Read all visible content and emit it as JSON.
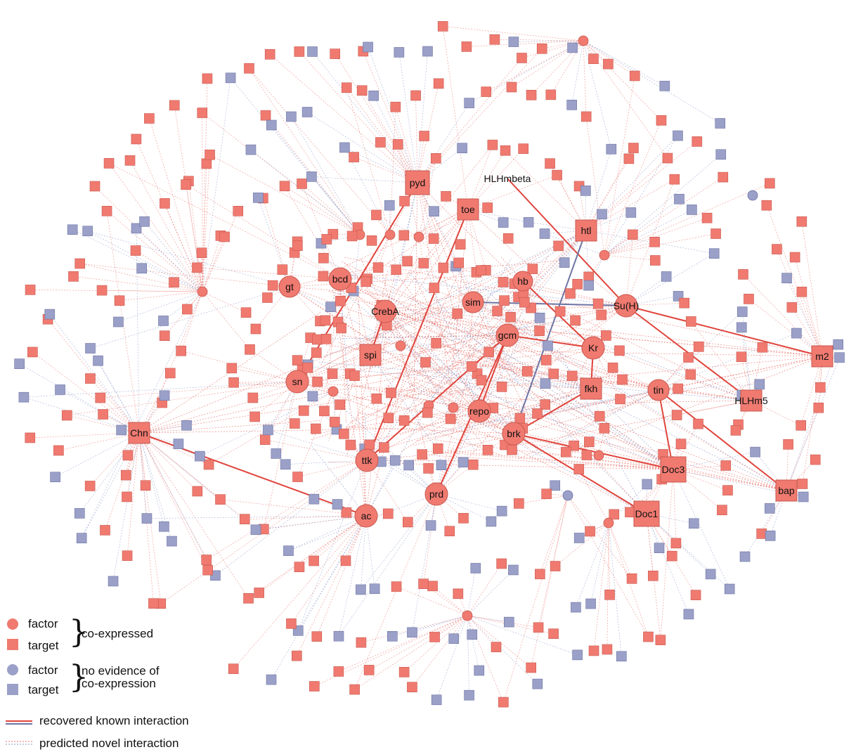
{
  "nodes": {
    "labeled": [
      {
        "id": "pyd",
        "label": "pyd",
        "kind": "target"
      },
      {
        "id": "HLHmbeta",
        "label": "HLHmbeta",
        "kind": "text"
      },
      {
        "id": "toe",
        "label": "toe",
        "kind": "target"
      },
      {
        "id": "htl",
        "label": "htl",
        "kind": "target"
      },
      {
        "id": "bcd",
        "label": "bcd",
        "kind": "factor"
      },
      {
        "id": "gt",
        "label": "gt",
        "kind": "factor"
      },
      {
        "id": "hb",
        "label": "hb",
        "kind": "factor"
      },
      {
        "id": "sim",
        "label": "sim",
        "kind": "factor"
      },
      {
        "id": "CrebA",
        "label": "CrebA",
        "kind": "factor"
      },
      {
        "id": "SuH",
        "label": "Su(H)",
        "kind": "factor"
      },
      {
        "id": "gcm",
        "label": "gcm",
        "kind": "factor"
      },
      {
        "id": "spi",
        "label": "spi",
        "kind": "target"
      },
      {
        "id": "Kr",
        "label": "Kr",
        "kind": "factor"
      },
      {
        "id": "m2",
        "label": "m2",
        "kind": "target"
      },
      {
        "id": "sn",
        "label": "sn",
        "kind": "factor"
      },
      {
        "id": "fkh",
        "label": "fkh",
        "kind": "target"
      },
      {
        "id": "tin",
        "label": "tin",
        "kind": "factor"
      },
      {
        "id": "HLHm5",
        "label": "HLHm5",
        "kind": "target"
      },
      {
        "id": "repo",
        "label": "repo",
        "kind": "factor"
      },
      {
        "id": "Chn",
        "label": "Chn",
        "kind": "target"
      },
      {
        "id": "brk",
        "label": "brk",
        "kind": "factor"
      },
      {
        "id": "ttk",
        "label": "ttk",
        "kind": "factor"
      },
      {
        "id": "Doc3",
        "label": "Doc3",
        "kind": "target"
      },
      {
        "id": "bap",
        "label": "bap",
        "kind": "target"
      },
      {
        "id": "prd",
        "label": "prd",
        "kind": "factor"
      },
      {
        "id": "Doc1",
        "label": "Doc1",
        "kind": "target"
      },
      {
        "id": "ac",
        "label": "ac",
        "kind": "factor"
      }
    ]
  },
  "known_interactions": [
    [
      "sn",
      "pyd"
    ],
    [
      "ttk",
      "toe"
    ],
    [
      "HLHmbeta",
      "SuH"
    ],
    [
      "sim",
      "SuH"
    ],
    [
      "SuH",
      "m2"
    ],
    [
      "SuH",
      "HLHm5"
    ],
    [
      "brk",
      "htl"
    ],
    [
      "hb",
      "Kr"
    ],
    [
      "Kr",
      "fkh"
    ],
    [
      "Kr",
      "gcm"
    ],
    [
      "gcm",
      "ttk"
    ],
    [
      "gcm",
      "prd"
    ],
    [
      "gcm",
      "repo"
    ],
    [
      "brk",
      "fkh"
    ],
    [
      "brk",
      "Doc3"
    ],
    [
      "brk",
      "Doc1"
    ],
    [
      "tin",
      "Doc3"
    ],
    [
      "tin",
      "bap"
    ],
    [
      "Chn",
      "ac"
    ],
    [
      "CrebA",
      "spi"
    ]
  ],
  "legend": {
    "factor_co": "factor",
    "target_co": "target",
    "co_expressed": "co-expressed",
    "factor_no": "factor",
    "target_no": "target",
    "no_evidence_line1": "no evidence of",
    "no_evidence_line2": "co-expression",
    "recovered": "recovered known interaction",
    "predicted": "predicted novel interaction"
  },
  "colors": {
    "coexpressed": "#f07a70",
    "coexpressed_stroke": "#c9584e",
    "no_evidence": "#9aa0c8",
    "no_evidence_stroke": "#6e74a3",
    "known_edge": "#e0443c",
    "novel_edge_red": "#e87068",
    "novel_edge_blue": "#8a98c8"
  }
}
